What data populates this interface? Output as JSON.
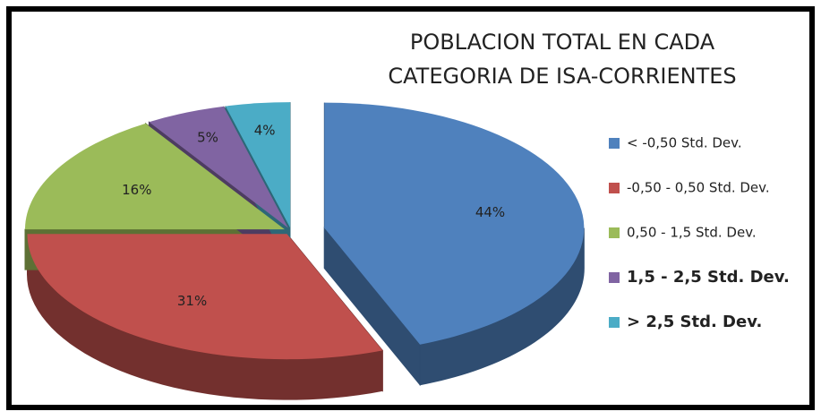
{
  "chart_data": {
    "type": "pie",
    "title": [
      "POBLACION TOTAL EN CADA",
      "CATEGORIA DE ISA-CORRIENTES"
    ],
    "categories": [
      "< -0,50 Std. Dev.",
      "-0,50 - 0,50 Std. Dev.",
      "0,50 - 1,5 Std. Dev.",
      "1,5 - 2,5 Std. Dev.",
      "> 2,5 Std. Dev."
    ],
    "values": [
      44,
      31,
      16,
      5,
      4
    ],
    "value_labels": [
      "44%",
      "31%",
      "16%",
      "5%",
      "4%"
    ],
    "colors": [
      "#4f81bd",
      "#c0504d",
      "#9bbb59",
      "#8064a2",
      "#4bacc6"
    ],
    "legend": "right"
  }
}
